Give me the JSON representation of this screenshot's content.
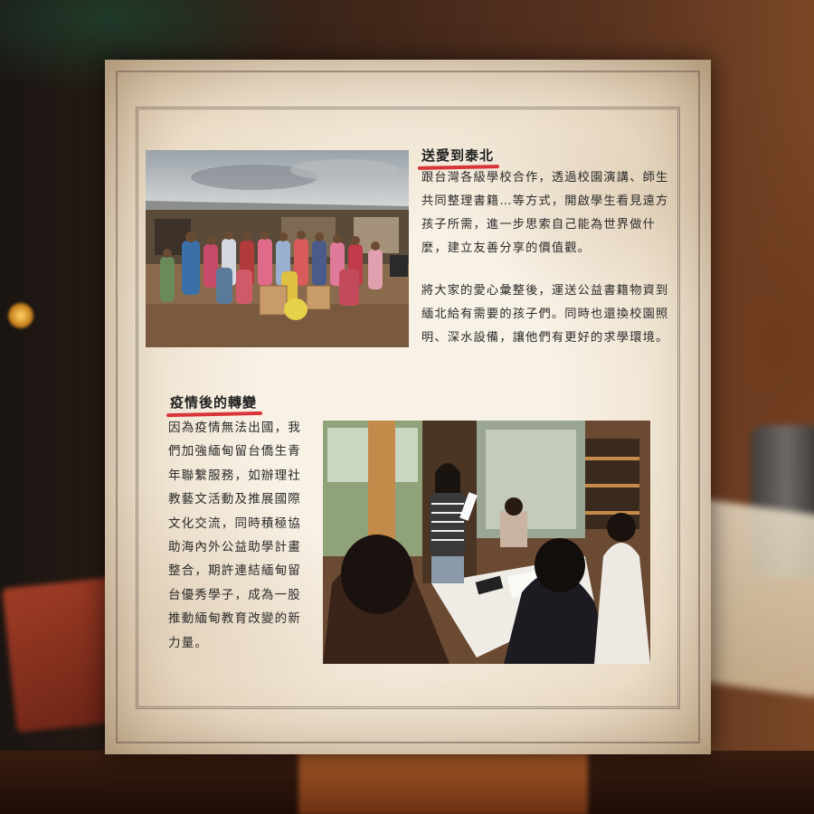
{
  "section1": {
    "title": "送愛到泰北",
    "paragraph1": "跟台灣各級學校合作，透過校園演講、師生共同整理書籍…等方式，開啟學生看見遠方孩子所需，進一步思索自己能為世界做什麼，建立友善分享的價值觀。",
    "paragraph2": "將大家的愛心彙整後，運送公益書籍物資到緬北給有需要的孩子們。同時也還換校園照明、深水設備，讓他們有更好的求學環境。"
  },
  "section2": {
    "title": "疫情後的轉變",
    "paragraph": "因為疫情無法出國，我們加強緬甸留台僑生青年聯繫服務，如辦理社教藝文活動及推展國際文化交流，同時積極協助海內外公益助學計畫整合，期許連結緬甸留台優秀學子，成為一股推動緬甸教育改變的新力量。"
  },
  "colors": {
    "underline": "#d9343a",
    "text": "#2a2a2a"
  }
}
